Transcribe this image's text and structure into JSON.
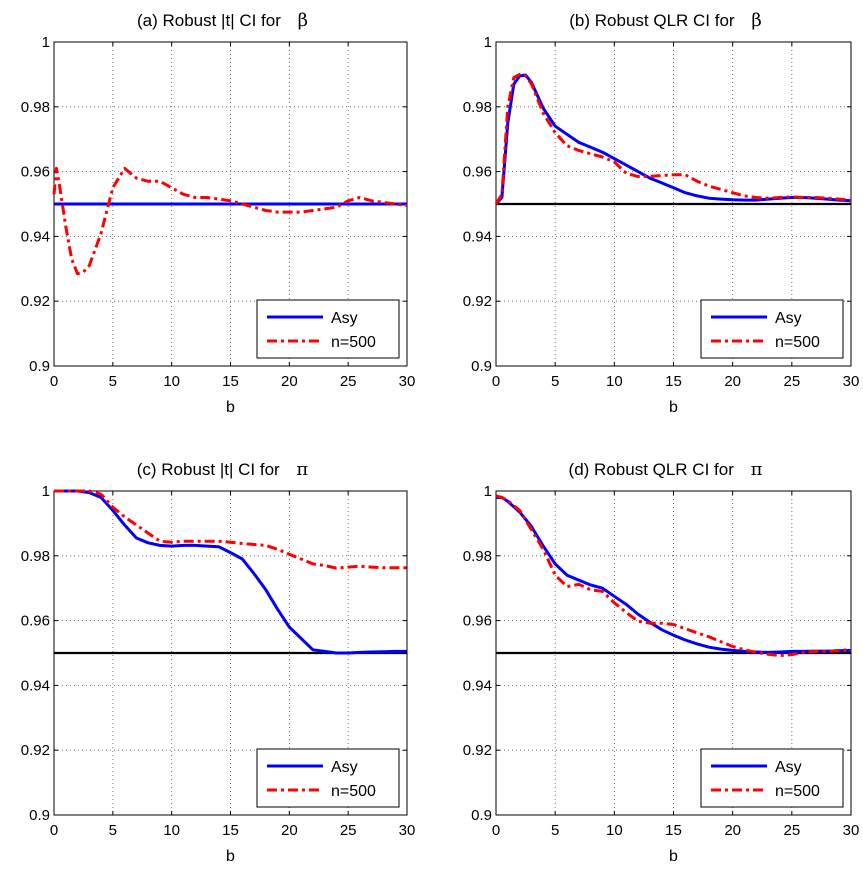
{
  "figure": {
    "line_colors": {
      "asy": "#0000ff",
      "sim": "#ff0000",
      "reference": "#000000"
    }
  },
  "chart_data": [
    {
      "type": "line",
      "title": "(a) Robust |t| CI for",
      "title_symbol": "β",
      "xlabel": "b",
      "ylabel": "",
      "xlim": [
        0,
        30
      ],
      "ylim": [
        0.9,
        1
      ],
      "x_ticks": [
        "0",
        "5",
        "10",
        "15",
        "20",
        "25",
        "30"
      ],
      "y_ticks": [
        "0.9",
        "0.92",
        "0.94",
        "0.96",
        "0.98",
        "1"
      ],
      "grid": true,
      "legend_position": "bottom-right",
      "reference_line": null,
      "series": [
        {
          "name": "Asy",
          "color": "#0000ff",
          "style": "solid",
          "x": [
            0,
            30
          ],
          "y": [
            0.95,
            0.95
          ]
        },
        {
          "name": "n=500",
          "color": "#ff0000",
          "style": "dashdot",
          "x": [
            0,
            0.2,
            0.5,
            1,
            1.5,
            2,
            2.5,
            3,
            4,
            5,
            6,
            7,
            8,
            9,
            10,
            11,
            12,
            13,
            14,
            15,
            16,
            17,
            18,
            19,
            20,
            21,
            22,
            23,
            24,
            25,
            26,
            27,
            28,
            29,
            30
          ],
          "y": [
            0.953,
            0.961,
            0.955,
            0.943,
            0.933,
            0.9285,
            0.929,
            0.931,
            0.941,
            0.955,
            0.961,
            0.958,
            0.957,
            0.957,
            0.955,
            0.953,
            0.952,
            0.952,
            0.9515,
            0.951,
            0.95,
            0.949,
            0.948,
            0.9475,
            0.9475,
            0.9475,
            0.948,
            0.9485,
            0.949,
            0.951,
            0.952,
            0.951,
            0.9505,
            0.95,
            0.9495
          ]
        }
      ]
    },
    {
      "type": "line",
      "title": "(b) Robust QLR CI for",
      "title_symbol": "β",
      "xlabel": "b",
      "ylabel": "",
      "xlim": [
        0,
        30
      ],
      "ylim": [
        0.9,
        1
      ],
      "x_ticks": [
        "0",
        "5",
        "10",
        "15",
        "20",
        "25",
        "30"
      ],
      "y_ticks": [
        "0.9",
        "0.92",
        "0.94",
        "0.96",
        "0.98",
        "1"
      ],
      "grid": true,
      "legend_position": "bottom-right",
      "reference_line": 0.95,
      "series": [
        {
          "name": "Asy",
          "color": "#0000ff",
          "style": "solid",
          "x": [
            0,
            0.5,
            1,
            1.5,
            2,
            2.5,
            3,
            4,
            5,
            6,
            7,
            8,
            9,
            10,
            11,
            12,
            13,
            14,
            15,
            16,
            17,
            18,
            19,
            20,
            21,
            22,
            23,
            24,
            25,
            26,
            27,
            28,
            29,
            30
          ],
          "y": [
            0.95,
            0.952,
            0.975,
            0.987,
            0.9895,
            0.9898,
            0.9875,
            0.9795,
            0.974,
            0.9715,
            0.969,
            0.9675,
            0.966,
            0.964,
            0.962,
            0.96,
            0.958,
            0.9565,
            0.955,
            0.9535,
            0.9525,
            0.9518,
            0.9515,
            0.9513,
            0.9512,
            0.9512,
            0.9515,
            0.9518,
            0.952,
            0.952,
            0.9518,
            0.9515,
            0.9512,
            0.951
          ]
        },
        {
          "name": "n=500",
          "color": "#ff0000",
          "style": "dashdot",
          "x": [
            0,
            0.5,
            1,
            1.5,
            2,
            2.5,
            3,
            4,
            5,
            6,
            7,
            8,
            9,
            10,
            11,
            12,
            13,
            14,
            15,
            16,
            17,
            18,
            19,
            20,
            21,
            22,
            23,
            24,
            25,
            26,
            27,
            28,
            29,
            30
          ],
          "y": [
            0.95,
            0.953,
            0.98,
            0.989,
            0.99,
            0.9895,
            0.987,
            0.978,
            0.972,
            0.968,
            0.9665,
            0.9655,
            0.9645,
            0.963,
            0.9595,
            0.9585,
            0.9585,
            0.9588,
            0.959,
            0.959,
            0.957,
            0.9555,
            0.9545,
            0.9535,
            0.9525,
            0.952,
            0.9518,
            0.952,
            0.9522,
            0.952,
            0.952,
            0.9518,
            0.9515,
            0.9512
          ]
        }
      ]
    },
    {
      "type": "line",
      "title": "(c) Robust |t| CI for",
      "title_symbol": "π",
      "xlabel": "b",
      "ylabel": "",
      "xlim": [
        0,
        30
      ],
      "ylim": [
        0.9,
        1
      ],
      "x_ticks": [
        "0",
        "5",
        "10",
        "15",
        "20",
        "25",
        "30"
      ],
      "y_ticks": [
        "0.9",
        "0.92",
        "0.94",
        "0.96",
        "0.98",
        "1"
      ],
      "grid": true,
      "legend_position": "bottom-right",
      "reference_line": 0.95,
      "series": [
        {
          "name": "Asy",
          "color": "#0000ff",
          "style": "solid",
          "x": [
            0,
            1,
            2,
            3,
            4,
            5,
            6,
            7,
            8,
            9,
            10,
            11,
            12,
            13,
            14,
            15,
            16,
            17,
            18,
            19,
            20,
            21,
            22,
            23,
            24,
            25,
            26,
            27,
            28,
            29,
            30
          ],
          "y": [
            1,
            1,
            1,
            0.9995,
            0.998,
            0.994,
            0.9895,
            0.9855,
            0.984,
            0.9832,
            0.983,
            0.9832,
            0.9832,
            0.983,
            0.9828,
            0.981,
            0.979,
            0.9745,
            0.9695,
            0.9635,
            0.958,
            0.9545,
            0.951,
            0.9505,
            0.95,
            0.95,
            0.9502,
            0.9503,
            0.9504,
            0.9505,
            0.9505
          ]
        },
        {
          "name": "n=500",
          "color": "#ff0000",
          "style": "dashdot",
          "x": [
            0,
            1,
            2,
            3,
            4,
            5,
            6,
            7,
            8,
            9,
            10,
            11,
            12,
            13,
            14,
            15,
            16,
            17,
            18,
            19,
            20,
            21,
            22,
            23,
            24,
            25,
            26,
            27,
            28,
            29,
            30
          ],
          "y": [
            1,
            1,
            1,
            1,
            0.999,
            0.995,
            0.992,
            0.9895,
            0.987,
            0.9845,
            0.9842,
            0.9845,
            0.9845,
            0.9845,
            0.9845,
            0.9842,
            0.9838,
            0.9835,
            0.9832,
            0.982,
            0.9805,
            0.979,
            0.9775,
            0.977,
            0.9762,
            0.9765,
            0.9768,
            0.9765,
            0.9763,
            0.9763,
            0.9763
          ]
        }
      ]
    },
    {
      "type": "line",
      "title": "(d) Robust QLR CI for",
      "title_symbol": "π",
      "xlabel": "b",
      "ylabel": "",
      "xlim": [
        0,
        30
      ],
      "ylim": [
        0.9,
        1
      ],
      "x_ticks": [
        "0",
        "5",
        "10",
        "15",
        "20",
        "25",
        "30"
      ],
      "y_ticks": [
        "0.9",
        "0.92",
        "0.94",
        "0.96",
        "0.98",
        "1"
      ],
      "grid": true,
      "legend_position": "bottom-right",
      "reference_line": 0.95,
      "series": [
        {
          "name": "Asy",
          "color": "#0000ff",
          "style": "solid",
          "x": [
            0,
            0.5,
            1,
            2,
            3,
            4,
            5,
            6,
            7,
            8,
            9,
            10,
            11,
            12,
            13,
            14,
            15,
            16,
            17,
            18,
            19,
            20,
            21,
            22,
            23,
            24,
            25,
            26,
            27,
            28,
            29,
            30
          ],
          "y": [
            0.998,
            0.998,
            0.9968,
            0.9935,
            0.989,
            0.983,
            0.9775,
            0.974,
            0.9725,
            0.971,
            0.97,
            0.9675,
            0.965,
            0.962,
            0.9595,
            0.9572,
            0.9555,
            0.954,
            0.9528,
            0.9518,
            0.9512,
            0.9508,
            0.9505,
            0.9503,
            0.9502,
            0.9503,
            0.9505,
            0.9505,
            0.9506,
            0.9506,
            0.9507,
            0.9508
          ]
        },
        {
          "name": "n=500",
          "color": "#ff0000",
          "style": "dashdot",
          "x": [
            0,
            0.5,
            1,
            2,
            3,
            4,
            5,
            6,
            7,
            8,
            9,
            10,
            11,
            12,
            13,
            14,
            15,
            16,
            17,
            18,
            19,
            20,
            21,
            22,
            23,
            24,
            25,
            26,
            27,
            28,
            29,
            30
          ],
          "y": [
            0.9985,
            0.998,
            0.997,
            0.994,
            0.988,
            0.982,
            0.974,
            0.9705,
            0.9712,
            0.9695,
            0.969,
            0.9655,
            0.9625,
            0.9598,
            0.9592,
            0.9592,
            0.9588,
            0.9575,
            0.9562,
            0.955,
            0.9535,
            0.952,
            0.951,
            0.9502,
            0.9496,
            0.9492,
            0.9495,
            0.9502,
            0.9505,
            0.9505,
            0.9508,
            0.951
          ]
        }
      ]
    }
  ]
}
